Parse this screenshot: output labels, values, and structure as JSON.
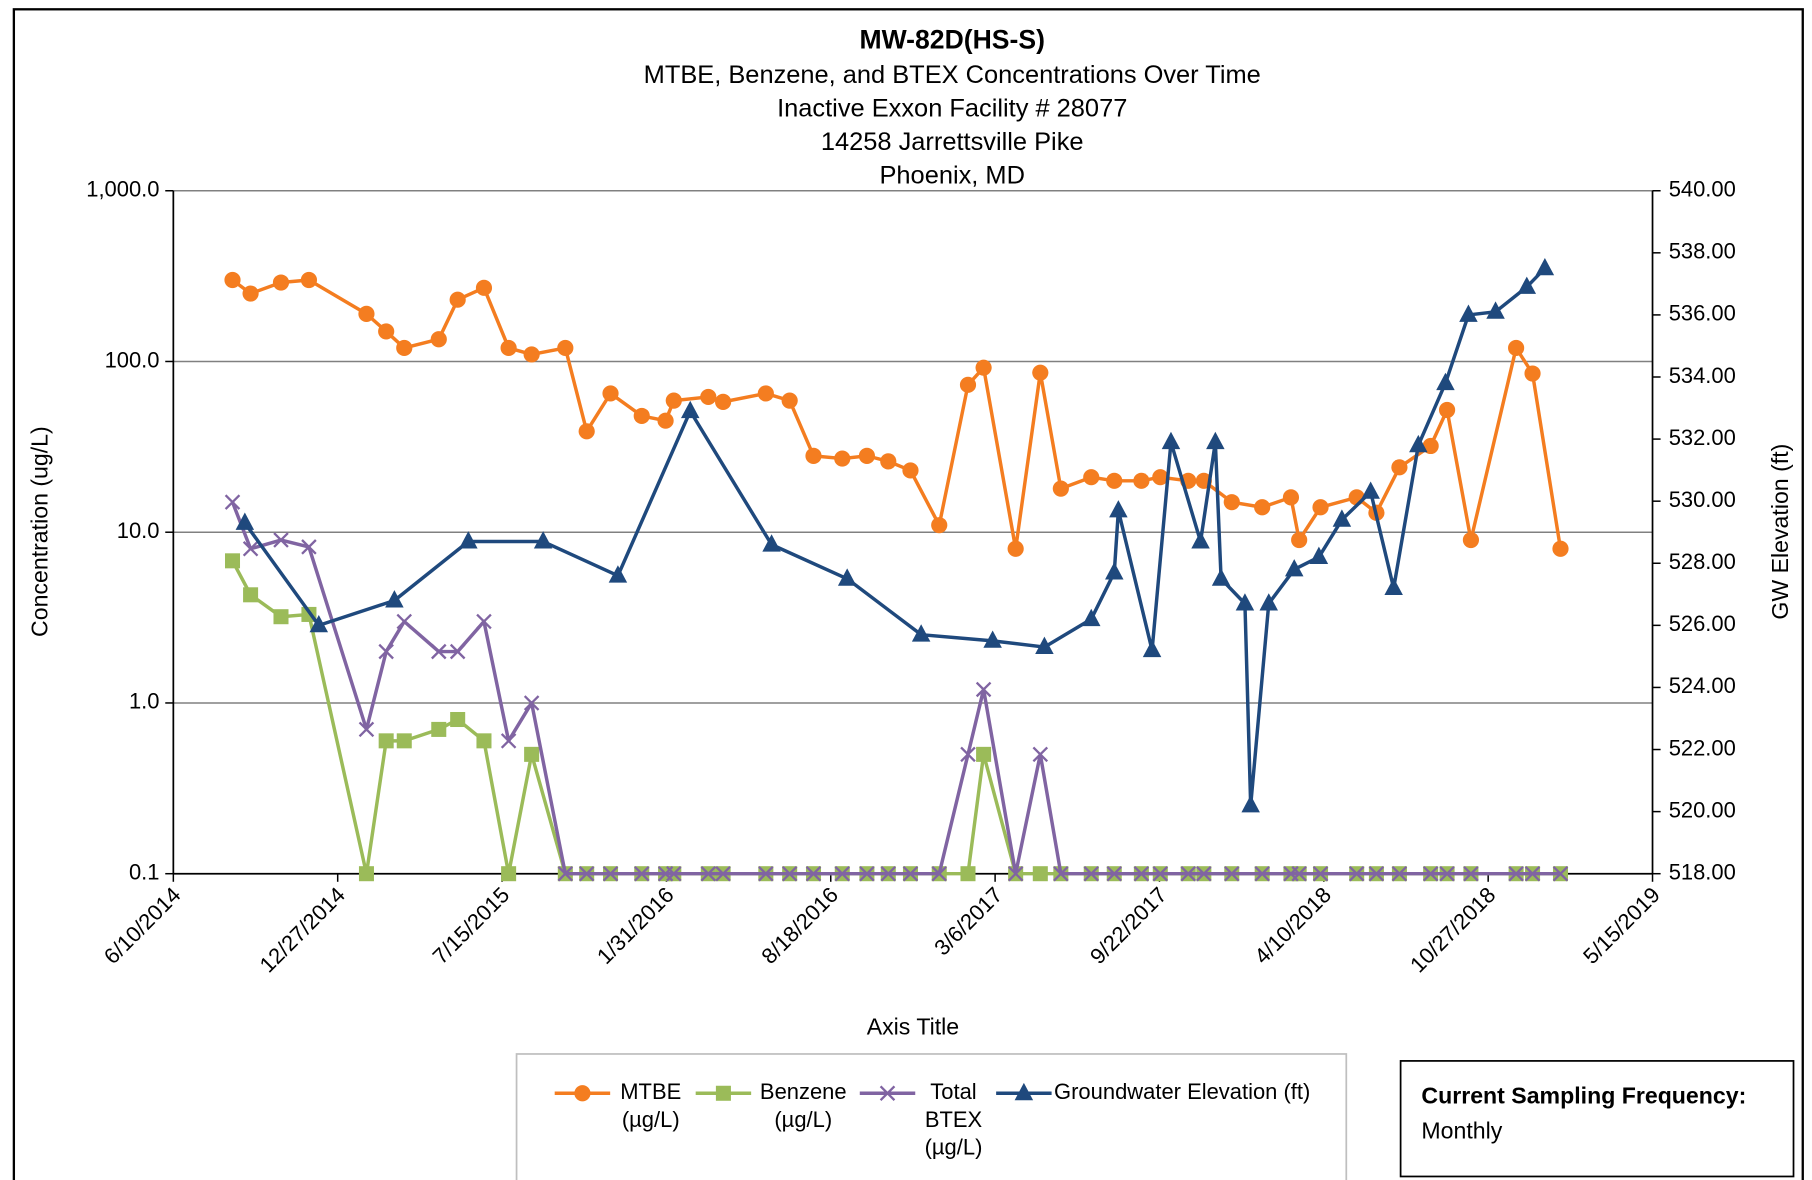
{
  "chart_data": {
    "type": "line",
    "title": "MW-82D(HS-S)",
    "subtitle": [
      "MTBE, Benzene, and BTEX Concentrations Over Time",
      "Inactive Exxon Facility # 28077",
      "14258 Jarrettsville Pike",
      "Phoenix, MD"
    ],
    "x_label": "Axis Title",
    "y_label": "Concentration (ug/L)",
    "y2_label": "GW Elevation (ft)",
    "x": [
      "2014-08-21",
      "2014-09-12",
      "2014-10-19",
      "2014-11-22",
      "2015-01-31",
      "2015-02-24",
      "2015-03-18",
      "2015-04-29",
      "2015-05-22",
      "2015-06-23",
      "2015-07-23",
      "2015-08-20",
      "2015-09-30",
      "2015-10-26",
      "2015-11-24",
      "2016-01-01",
      "2016-01-30",
      "2016-02-09",
      "2016-03-22",
      "2016-04-09",
      "2016-05-31",
      "2016-06-29",
      "2016-07-28",
      "2016-09-01",
      "2016-10-01",
      "2016-10-27",
      "2016-11-23",
      "2016-12-28",
      "2017-02-01",
      "2017-02-20",
      "2017-03-31",
      "2017-04-30",
      "2017-05-25",
      "2017-07-01",
      "2017-07-29",
      "2017-08-31",
      "2017-09-23",
      "2017-10-27",
      "2017-11-15",
      "2017-12-19",
      "2018-01-25",
      "2018-03-01",
      "2018-03-11",
      "2018-04-06",
      "2018-05-20",
      "2018-06-13",
      "2018-07-11",
      "2018-08-18",
      "2018-09-07",
      "2018-10-06",
      "2018-11-30",
      "2018-12-20",
      "2019-01-23"
    ],
    "xlim": [
      "2014-06-10",
      "2019-05-15"
    ],
    "xticks": [
      {
        "value": "2014-06-10",
        "label": "6/10/2014"
      },
      {
        "value": "2014-12-27",
        "label": "12/27/2014"
      },
      {
        "value": "2015-07-15",
        "label": "7/15/2015"
      },
      {
        "value": "2016-01-31",
        "label": "1/31/2016"
      },
      {
        "value": "2016-08-18",
        "label": "8/18/2016"
      },
      {
        "value": "2017-03-06",
        "label": "3/6/2017"
      },
      {
        "value": "2017-09-22",
        "label": "9/22/2017"
      },
      {
        "value": "2018-04-10",
        "label": "4/10/2018"
      },
      {
        "value": "2018-10-27",
        "label": "10/27/2018"
      },
      {
        "value": "2019-05-15",
        "label": "5/15/2019"
      }
    ],
    "ylim": [
      0.1,
      1000
    ],
    "yticks": [
      0.1,
      {
        "value": 1,
        "label": "1.0"
      },
      {
        "value": 10,
        "label": "10.0"
      },
      {
        "value": 100,
        "label": "100.0"
      },
      {
        "value": 1000,
        "label": "1,000.0"
      }
    ],
    "y_log": true,
    "y2lim": [
      518,
      540
    ],
    "y2ticks": [
      {
        "value": 518,
        "label": "518.00"
      },
      {
        "value": 520,
        "label": "520.00"
      },
      {
        "value": 522,
        "label": "522.00"
      },
      {
        "value": 524,
        "label": "524.00"
      },
      {
        "value": 526,
        "label": "526.00"
      },
      {
        "value": 528,
        "label": "528.00"
      },
      {
        "value": 530,
        "label": "530.00"
      },
      {
        "value": 532,
        "label": "532.00"
      },
      {
        "value": 534,
        "label": "534.00"
      },
      {
        "value": 536,
        "label": "536.00"
      },
      {
        "value": 538,
        "label": "538.00"
      },
      {
        "value": 540,
        "label": "540.00"
      }
    ],
    "grid": true,
    "legend": "bottom",
    "series": [
      {
        "name": "MTBE (µg/L)",
        "color": "#f47d20",
        "marker": "circle",
        "values": [
          300,
          250,
          290,
          300,
          190,
          150,
          120,
          135,
          230,
          270,
          120,
          110,
          120,
          39,
          65,
          48,
          45,
          59,
          62,
          58,
          65,
          59,
          28,
          27,
          28,
          26,
          23,
          11,
          73,
          92,
          8,
          86,
          18,
          21,
          20,
          20,
          21,
          20,
          20,
          15,
          14,
          16,
          9,
          14,
          16,
          13,
          24,
          32,
          52,
          9,
          120,
          85,
          8
        ]
      },
      {
        "name": "Benzene (µg/L)",
        "color": "#9bbb59",
        "marker": "square",
        "values": [
          6.8,
          4.3,
          3.2,
          3.3,
          0.1,
          0.6,
          0.6,
          0.7,
          0.8,
          0.6,
          0.1,
          0.5,
          0.1,
          0.1,
          0.1,
          0.1,
          0.1,
          0.1,
          0.1,
          0.1,
          0.1,
          0.1,
          0.1,
          0.1,
          0.1,
          0.1,
          0.1,
          0.1,
          0.1,
          0.5,
          0.1,
          0.1,
          0.1,
          0.1,
          0.1,
          0.1,
          0.1,
          0.1,
          0.1,
          0.1,
          0.1,
          0.1,
          0.1,
          0.1,
          0.1,
          0.1,
          0.1,
          0.1,
          0.1,
          0.1,
          0.1,
          0.1,
          0.1
        ]
      },
      {
        "name": "Total BTEX (µg/L)",
        "color": "#8064a2",
        "marker": "x",
        "values": [
          15,
          8,
          9,
          8.2,
          0.7,
          2,
          3,
          2,
          2,
          3,
          0.6,
          1.0,
          0.1,
          0.1,
          0.1,
          0.1,
          0.1,
          0.1,
          0.1,
          0.1,
          0.1,
          0.1,
          0.1,
          0.1,
          0.1,
          0.1,
          0.1,
          0.1,
          0.5,
          1.2,
          0.1,
          0.5,
          0.1,
          0.1,
          0.1,
          0.1,
          0.1,
          0.1,
          0.1,
          0.1,
          0.1,
          0.1,
          0.1,
          0.1,
          0.1,
          0.1,
          0.1,
          0.1,
          0.1,
          0.1,
          0.1,
          0.1,
          0.1
        ]
      },
      {
        "name": "Groundwater Elevation (ft)",
        "color": "#1f497d",
        "marker": "triangle",
        "axis": "y2",
        "x": [
          "2014-09-05",
          "2014-12-04",
          "2015-03-06",
          "2015-06-04",
          "2015-09-03",
          "2015-12-03",
          "2016-02-29",
          "2016-06-07",
          "2016-09-07",
          "2016-12-06",
          "2017-03-03",
          "2017-05-05",
          "2017-07-01",
          "2017-07-29",
          "2017-08-03",
          "2017-09-13",
          "2017-10-06",
          "2017-11-11",
          "2017-11-29",
          "2017-12-06",
          "2018-01-04",
          "2018-01-11",
          "2018-02-02",
          "2018-03-05",
          "2018-04-04",
          "2018-05-02",
          "2018-06-06",
          "2018-07-04",
          "2018-08-03",
          "2018-09-05",
          "2018-10-03",
          "2018-11-05",
          "2018-12-13",
          "2019-01-04"
        ],
        "values": [
          529.3,
          526.0,
          526.8,
          528.7,
          528.7,
          527.6,
          532.9,
          528.6,
          527.5,
          525.7,
          525.5,
          525.3,
          526.2,
          527.7,
          529.7,
          525.2,
          531.9,
          528.7,
          531.9,
          527.5,
          526.7,
          520.2,
          526.7,
          527.8,
          528.2,
          529.4,
          530.3,
          527.2,
          531.8,
          533.8,
          536.0,
          536.1,
          536.9,
          537.5
        ]
      }
    ],
    "annotation": {
      "title": "Current Sampling Frequency:",
      "text": "Monthly"
    }
  }
}
